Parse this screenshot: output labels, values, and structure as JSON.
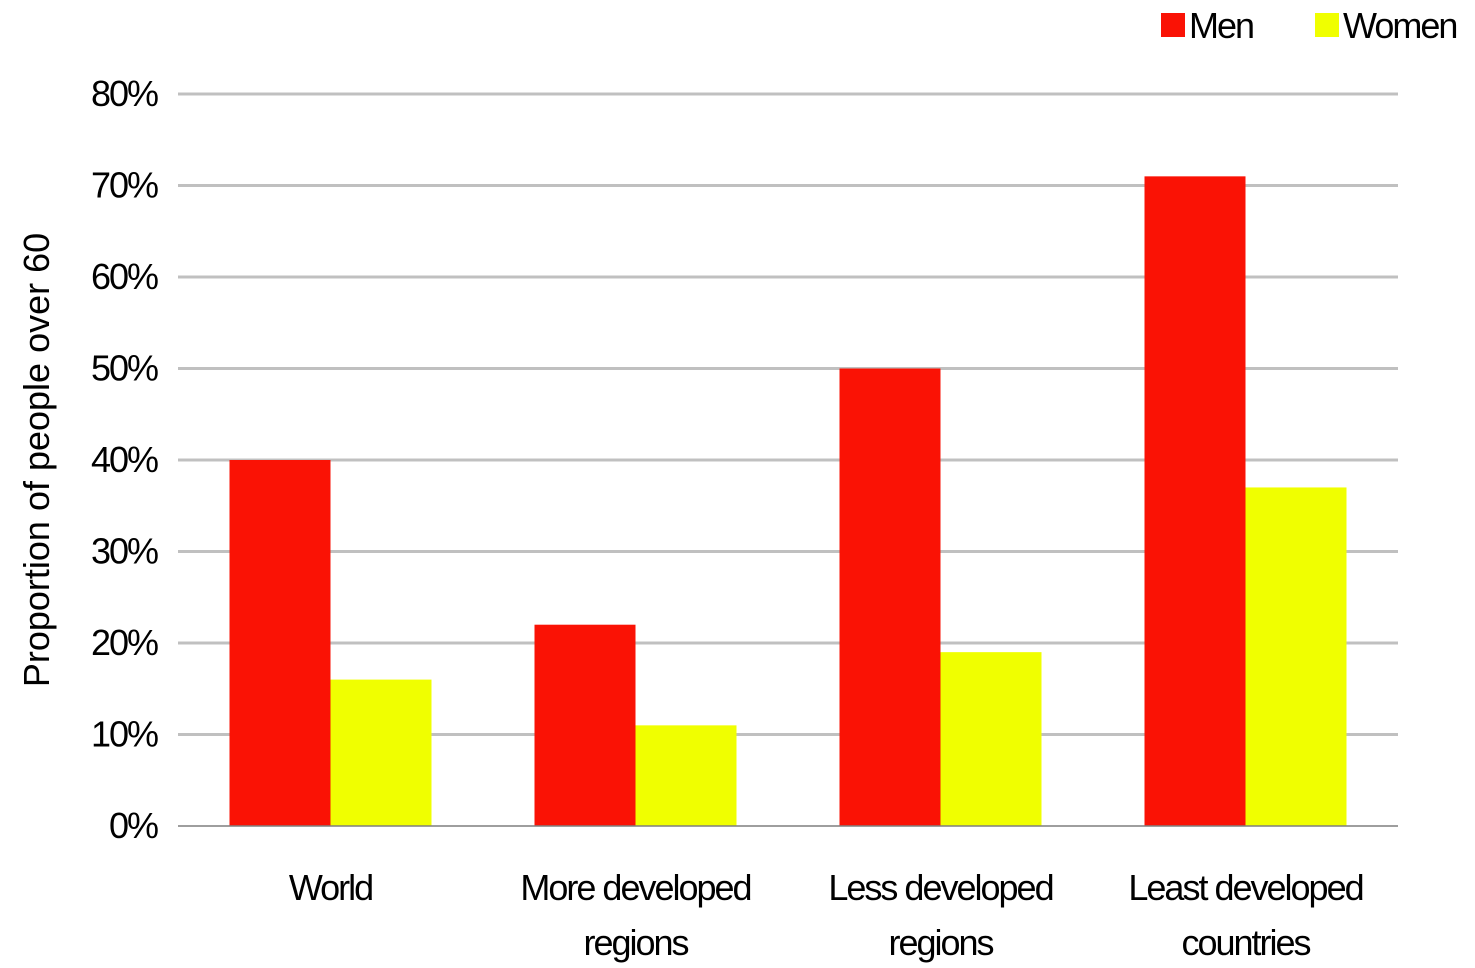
{
  "chart_data": {
    "type": "bar",
    "title": "",
    "ylabel": "Proportion of people over 60",
    "xlabel": "",
    "categories": [
      [
        "World"
      ],
      [
        "More developed",
        "regions"
      ],
      [
        "Less developed",
        "regions"
      ],
      [
        "Least developed",
        "countries"
      ]
    ],
    "series": [
      {
        "name": "Men",
        "color": "#fa1205",
        "values": [
          40,
          22,
          50,
          71
        ]
      },
      {
        "name": "Women",
        "color": "#f0ff00",
        "values": [
          16,
          11,
          19,
          37
        ]
      }
    ],
    "ylim": [
      0,
      80
    ],
    "yticks": [
      0,
      10,
      20,
      30,
      40,
      50,
      60,
      70,
      80
    ],
    "tick_format": "{v}%",
    "grid": true,
    "grid_color": "#c0c0c0",
    "legend_position": "top-right"
  }
}
